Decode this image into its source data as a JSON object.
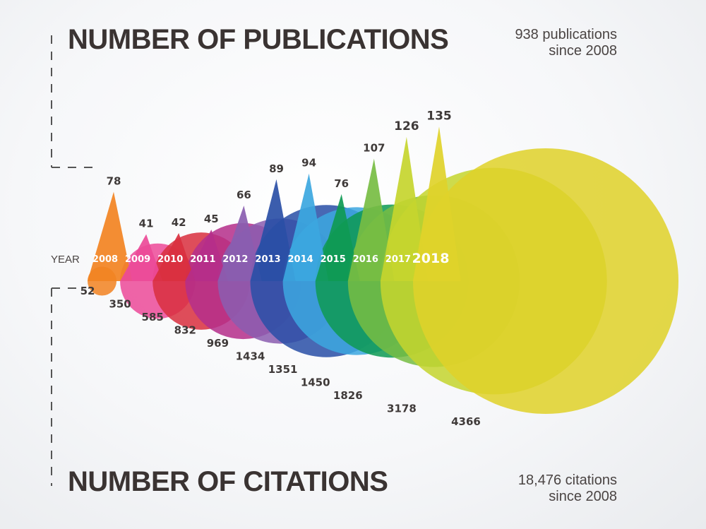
{
  "headings": {
    "publications": "NUMBER OF PUBLICATIONS",
    "citations": "NUMBER OF CITATIONS"
  },
  "summaries": {
    "publications": [
      "938 publications",
      "since 2008"
    ],
    "citations": [
      "18,476 citations",
      "since 2008"
    ]
  },
  "chart_data": {
    "type": "bubble",
    "axis_label": "YEAR",
    "years": [
      "2008",
      "2009",
      "2010",
      "2011",
      "2012",
      "2013",
      "2014",
      "2015",
      "2016",
      "2017",
      "2018"
    ],
    "series": [
      {
        "name": "NUMBER OF PUBLICATIONS",
        "values": [
          78,
          41,
          42,
          45,
          66,
          89,
          94,
          76,
          107,
          126,
          135
        ]
      },
      {
        "name": "NUMBER OF CITATIONS",
        "values": [
          52,
          350,
          585,
          832,
          969,
          1434,
          1351,
          1450,
          1826,
          3178,
          4366
        ]
      }
    ],
    "colors": [
      "#f28322",
      "#ec4a98",
      "#d9303f",
      "#b52e8a",
      "#8a5db0",
      "#2a4fa6",
      "#3ca7e0",
      "#0f9a54",
      "#77bd43",
      "#c5d52e",
      "#dfd22a"
    ]
  }
}
